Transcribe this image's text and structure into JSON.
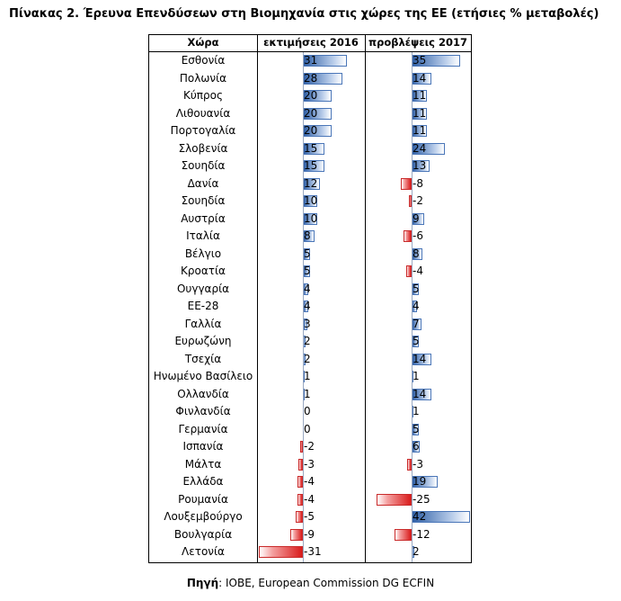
{
  "title": "Πίνακας 2. Έρευνα Επενδύσεων στη Βιομηχανία στις χώρες της ΕΕ (ετήσιες % μεταβολές)",
  "headers": {
    "country": "Χώρα",
    "col2016": "εκτιμήσεις 2016",
    "col2017": "προβλέψεις 2017"
  },
  "source_label": "Πηγή",
  "source_text": ": IOBE, European Commission DG ECFIN",
  "colors": {
    "positive": "#4a76b8",
    "negative": "#c92a2a"
  },
  "chart_data": {
    "type": "table",
    "categories": [
      "Εσθονία",
      "Πολωνία",
      "Κύπρος",
      "Λιθουανία",
      "Πορτογαλία",
      "Σλοβενία",
      "Σουηδία",
      "Δανία",
      "Σουηδία",
      "Αυστρία",
      "Ιταλία",
      "Βέλγιο",
      "Κροατία",
      "Ουγγαρία",
      "ΕΕ-28",
      "Γαλλία",
      "Ευρωζώνη",
      "Τσεχία",
      "Ηνωμένο Βασίλειο",
      "Ολλανδία",
      "Φινλανδία",
      "Γερμανία",
      "Ισπανία",
      "Μάλτα",
      "Ελλάδα",
      "Ρουμανία",
      "Λουξεμβούργο",
      "Βουλγαρία",
      "Λετονία"
    ],
    "series": [
      {
        "name": "εκτιμήσεις 2016",
        "values": [
          31,
          28,
          20,
          20,
          20,
          15,
          15,
          12,
          10,
          10,
          8,
          5,
          5,
          4,
          4,
          3,
          2,
          2,
          1,
          1,
          0,
          0,
          -2,
          -3,
          -4,
          -4,
          -5,
          -9,
          -31
        ]
      },
      {
        "name": "προβλέψεις 2017",
        "values": [
          35,
          14,
          11,
          11,
          11,
          24,
          13,
          -8,
          -2,
          9,
          -6,
          8,
          -4,
          5,
          4,
          7,
          5,
          14,
          1,
          14,
          1,
          5,
          6,
          -3,
          19,
          -25,
          42,
          -12,
          2
        ]
      }
    ]
  }
}
